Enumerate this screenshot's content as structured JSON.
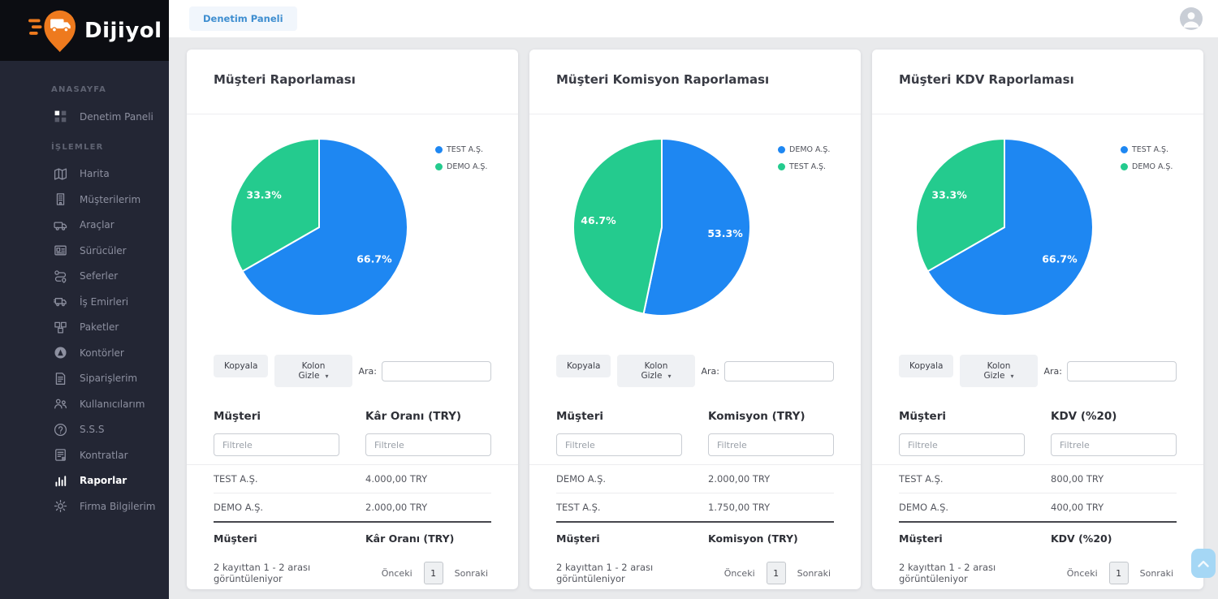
{
  "brand": {
    "name": "Dijiyol",
    "logo_icon": "dijiyol-pin-truck-logo"
  },
  "topbar": {
    "tab": "Denetim Paneli",
    "avatar_icon": "user-avatar-icon"
  },
  "icons": {
    "caret_down": "▾"
  },
  "scroll_top_icon": "chevron-up-icon",
  "sidebar": {
    "sections": [
      {
        "label": "ANASAYFA",
        "items": [
          {
            "label": "Denetim Paneli",
            "icon": "grid",
            "active": false
          }
        ]
      },
      {
        "label": "İŞLEMLER",
        "items": [
          {
            "label": "Harita",
            "icon": "map",
            "active": false
          },
          {
            "label": "Müşterilerim",
            "icon": "building",
            "active": false
          },
          {
            "label": "Araçlar",
            "icon": "van",
            "active": false
          },
          {
            "label": "Sürücüler",
            "icon": "idcard",
            "active": false
          },
          {
            "label": "Seferler",
            "icon": "route",
            "active": false
          },
          {
            "label": "İş Emirleri",
            "icon": "truck",
            "active": false
          },
          {
            "label": "Paketler",
            "icon": "packages",
            "active": false
          },
          {
            "label": "Kontörler",
            "icon": "circle-a",
            "active": false
          },
          {
            "label": "Siparişlerim",
            "icon": "invoice",
            "active": false
          },
          {
            "label": "Kullanıcılarım",
            "icon": "users",
            "active": false
          },
          {
            "label": "S.S.S",
            "icon": "question",
            "active": false
          },
          {
            "label": "Kontratlar",
            "icon": "contract",
            "active": false
          },
          {
            "label": "Raporlar",
            "icon": "chart",
            "active": true
          },
          {
            "label": "Firma Bilgilerim",
            "icon": "gear",
            "active": false
          }
        ]
      }
    ]
  },
  "chart_data": [
    {
      "type": "pie",
      "title": "Müşteri Raporlaması",
      "labels": [
        "TEST A.Ş.",
        "DEMO A.Ş."
      ],
      "values": [
        66.7,
        33.3
      ],
      "underlying_values_try": [
        4000.0,
        2000.0
      ],
      "display_labels": [
        "66.7%",
        "33.3%"
      ],
      "colors": [
        "#1e87f2",
        "#24cb8e"
      ],
      "legend_position": "right"
    },
    {
      "type": "pie",
      "title": "Müşteri Komisyon Raporlaması",
      "labels": [
        "DEMO A.Ş.",
        "TEST A.Ş."
      ],
      "values": [
        53.3,
        46.7
      ],
      "underlying_values_try": [
        2000.0,
        1750.0
      ],
      "display_labels": [
        "53.3%",
        "46.7%"
      ],
      "colors": [
        "#1e87f2",
        "#24cb8e"
      ],
      "legend_position": "right"
    },
    {
      "type": "pie",
      "title": "Müşteri KDV Raporlaması",
      "labels": [
        "TEST A.Ş.",
        "DEMO A.Ş."
      ],
      "values": [
        66.7,
        33.3
      ],
      "underlying_values_try": [
        800.0,
        400.0
      ],
      "display_labels": [
        "66.7%",
        "33.3%"
      ],
      "colors": [
        "#1e87f2",
        "#24cb8e"
      ],
      "legend_position": "right"
    }
  ],
  "cards": [
    {
      "title": "Müşteri Raporlaması",
      "toolbar": {
        "copy": "Kopyala",
        "hide_col": "Kolon Gizle",
        "search_label": "Ara:",
        "search_value": ""
      },
      "table": {
        "headers": [
          "Müşteri",
          "Kâr Oranı (TRY)"
        ],
        "filter_placeholder": "Filtrele",
        "rows": [
          [
            "TEST A.Ş.",
            "4.000,00 TRY"
          ],
          [
            "DEMO A.Ş.",
            "2.000,00 TRY"
          ]
        ],
        "footer": [
          "Müşteri",
          "Kâr Oranı (TRY)"
        ],
        "info": "2 kayıttan 1 - 2 arası görüntüleniyor",
        "prev": "Önceki",
        "page": "1",
        "next": "Sonraki"
      }
    },
    {
      "title": "Müşteri Komisyon Raporlaması",
      "toolbar": {
        "copy": "Kopyala",
        "hide_col": "Kolon Gizle",
        "search_label": "Ara:",
        "search_value": ""
      },
      "table": {
        "headers": [
          "Müşteri",
          "Komisyon (TRY)"
        ],
        "filter_placeholder": "Filtrele",
        "rows": [
          [
            "DEMO A.Ş.",
            "2.000,00 TRY"
          ],
          [
            "TEST A.Ş.",
            "1.750,00 TRY"
          ]
        ],
        "footer": [
          "Müşteri",
          "Komisyon (TRY)"
        ],
        "info": "2 kayıttan 1 - 2 arası görüntüleniyor",
        "prev": "Önceki",
        "page": "1",
        "next": "Sonraki"
      }
    },
    {
      "title": "Müşteri KDV Raporlaması",
      "toolbar": {
        "copy": "Kopyala",
        "hide_col": "Kolon Gizle",
        "search_label": "Ara:",
        "search_value": ""
      },
      "table": {
        "headers": [
          "Müşteri",
          "KDV (%20)"
        ],
        "filter_placeholder": "Filtrele",
        "rows": [
          [
            "TEST A.Ş.",
            "800,00 TRY"
          ],
          [
            "DEMO A.Ş.",
            "400,00 TRY"
          ]
        ],
        "footer": [
          "Müşteri",
          "KDV (%20)"
        ],
        "info": "2 kayıttan 1 - 2 arası görüntüleniyor",
        "prev": "Önceki",
        "page": "1",
        "next": "Sonraki"
      }
    }
  ]
}
